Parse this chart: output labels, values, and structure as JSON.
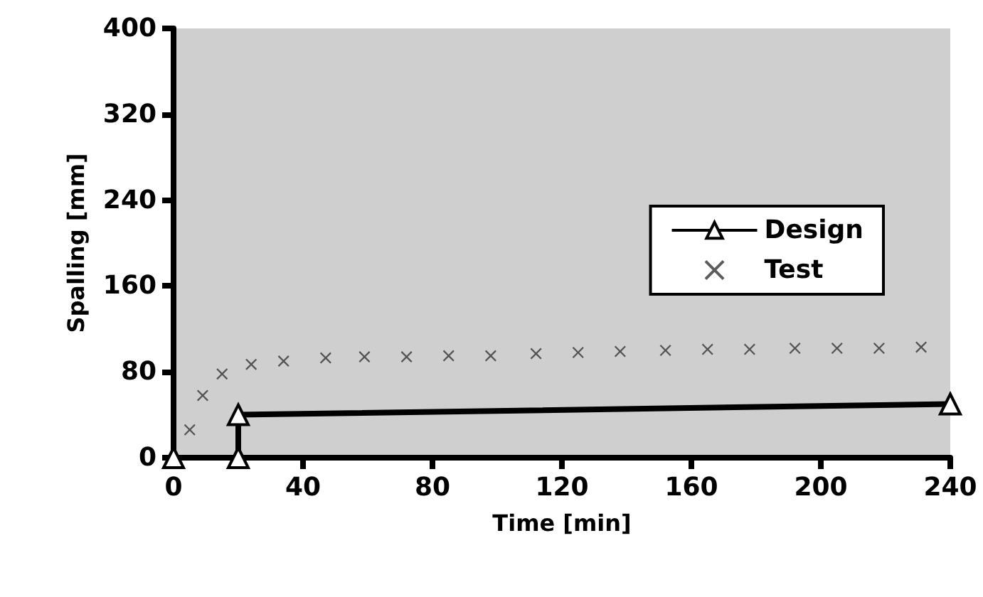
{
  "chart_data": {
    "type": "line",
    "xlabel": "Time [min]",
    "ylabel": "Spalling [mm]",
    "xlim": [
      0,
      240
    ],
    "xticks": [
      0,
      40,
      80,
      120,
      160,
      200,
      240
    ],
    "ylim": [
      0,
      400
    ],
    "yticks": [
      0,
      80,
      160,
      240,
      320,
      400
    ],
    "grid": false,
    "legend": "right",
    "series": [
      {
        "name": "Design",
        "color": "#000000",
        "marker": "triangle",
        "line_style": "solid",
        "x": [
          0,
          20,
          20,
          240
        ],
        "values": [
          0,
          0,
          40,
          50
        ]
      },
      {
        "name": "Test",
        "type": "scatter",
        "color": "#333333",
        "marker": "cross",
        "x": [
          5,
          9,
          15,
          24,
          34,
          47,
          59,
          72,
          85,
          98,
          112,
          125,
          138,
          152,
          165,
          178,
          192,
          205,
          218,
          231
        ],
        "values": [
          26,
          58,
          78,
          87,
          90,
          93,
          94,
          94,
          95,
          95,
          97,
          98,
          99,
          100,
          101,
          101,
          102,
          102,
          102,
          103
        ]
      }
    ]
  }
}
